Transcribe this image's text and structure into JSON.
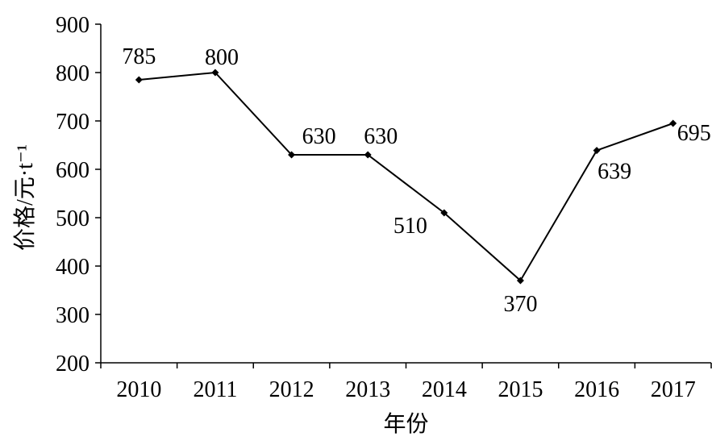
{
  "chart_data": {
    "type": "line",
    "categories": [
      "2010",
      "2011",
      "2012",
      "2013",
      "2014",
      "2015",
      "2016",
      "2017"
    ],
    "series": [
      {
        "values": [
          785,
          800,
          630,
          630,
          510,
          370,
          639,
          695
        ]
      }
    ],
    "data_labels": [
      "785",
      "800",
      "630",
      "630",
      "510",
      "370",
      "639",
      "695"
    ],
    "xlabel": "年份",
    "ylabel": "价格/元·t⁻¹",
    "ylim": [
      200,
      900
    ],
    "yticks": [
      "200",
      "300",
      "400",
      "500",
      "600",
      "700",
      "800",
      "900"
    ],
    "grid": false,
    "marker": "diamond",
    "line_color": "#000000"
  }
}
